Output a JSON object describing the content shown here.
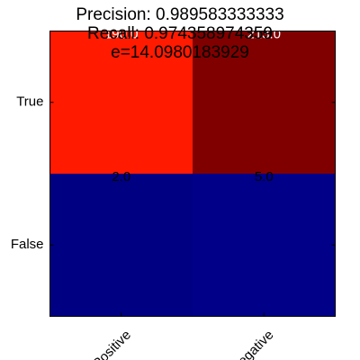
{
  "chart_data": {
    "type": "heatmap",
    "title_lines": [
      "Precision: 0.989583333333",
      "Recall: 0.974358974359",
      "e=14.0980183929"
    ],
    "x_categories": [
      "Positive",
      "Negative"
    ],
    "y_categories": [
      "True",
      "False"
    ],
    "cells": [
      {
        "row": 0,
        "col": 0,
        "value": 190.0,
        "label": "190.0",
        "color": "#ff1a00",
        "text_color": "#ffffff"
      },
      {
        "row": 0,
        "col": 1,
        "value": 213.0,
        "label": "213.0",
        "color": "#800000",
        "text_color": "#ffffff"
      },
      {
        "row": 1,
        "col": 0,
        "value": 2.0,
        "label": "2.0",
        "color": "#000083",
        "text_color": "#000000"
      },
      {
        "row": 1,
        "col": 1,
        "value": 5.0,
        "label": "5.0",
        "color": "#000088",
        "text_color": "#000000"
      }
    ],
    "x_tick_rotation_deg": -45,
    "colormap": "jet",
    "grid": false,
    "legend": "none"
  }
}
